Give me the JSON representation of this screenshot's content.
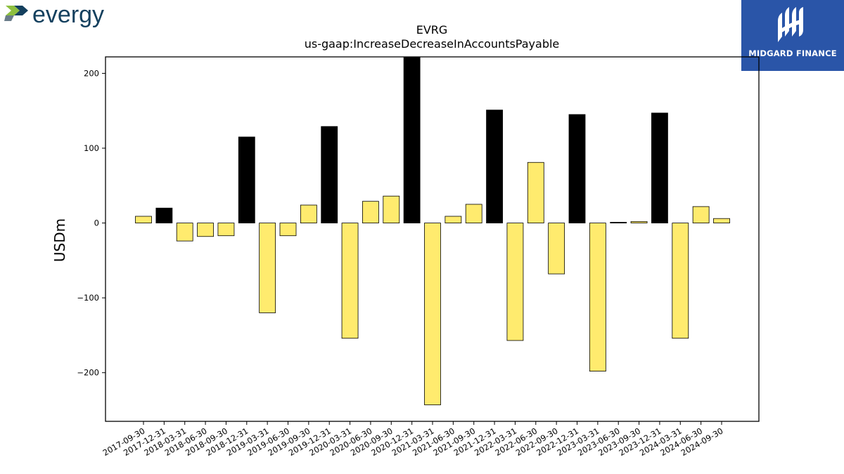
{
  "branding": {
    "left_logo_text": "evergy",
    "right_logo_text": "MIDGARD FINANCE"
  },
  "colors": {
    "positive_q4": "#000000",
    "other": "#ffeb6e",
    "edge": "#000000",
    "evergy_navy": "#14405e",
    "evergy_green": "#8dbf3f",
    "midgard_blue": "#2a55a8"
  },
  "chart_data": {
    "type": "bar",
    "title": "EVRG",
    "subtitle": "us-gaap:IncreaseDecreaseInAccountsPayable",
    "xlabel": "",
    "ylabel": "USDm",
    "ylim": [
      -265,
      222
    ],
    "yticks": [
      -200,
      -100,
      0,
      100,
      200
    ],
    "ytick_labels": [
      "−200",
      "−100",
      "0",
      "100",
      "200"
    ],
    "grid": false,
    "categories": [
      "2017-09-30",
      "2017-12-31",
      "2018-03-31",
      "2018-06-30",
      "2018-09-30",
      "2018-12-31",
      "2019-03-31",
      "2019-06-30",
      "2019-09-30",
      "2019-12-31",
      "2020-03-31",
      "2020-06-30",
      "2020-09-30",
      "2020-12-31",
      "2021-03-31",
      "2021-06-30",
      "2021-09-30",
      "2021-12-31",
      "2022-03-31",
      "2022-06-30",
      "2022-09-30",
      "2022-12-31",
      "2023-03-31",
      "2023-06-30",
      "2023-09-30",
      "2023-12-31",
      "2024-03-31",
      "2024-06-30",
      "2024-09-30"
    ],
    "values": [
      9,
      20,
      -24,
      -18,
      -17,
      115,
      -120,
      -17,
      24,
      129,
      -154,
      29,
      36,
      222,
      -243,
      9,
      25,
      151,
      -157,
      81,
      -68,
      145,
      -198,
      1,
      2,
      147,
      -154,
      22,
      6
    ],
    "colors": [
      "#ffeb6e",
      "#000000",
      "#ffeb6e",
      "#ffeb6e",
      "#ffeb6e",
      "#000000",
      "#ffeb6e",
      "#ffeb6e",
      "#ffeb6e",
      "#000000",
      "#ffeb6e",
      "#ffeb6e",
      "#ffeb6e",
      "#000000",
      "#ffeb6e",
      "#ffeb6e",
      "#ffeb6e",
      "#000000",
      "#ffeb6e",
      "#ffeb6e",
      "#ffeb6e",
      "#000000",
      "#ffeb6e",
      "#000000",
      "#ffeb6e",
      "#000000",
      "#ffeb6e",
      "#ffeb6e",
      "#ffeb6e"
    ]
  }
}
